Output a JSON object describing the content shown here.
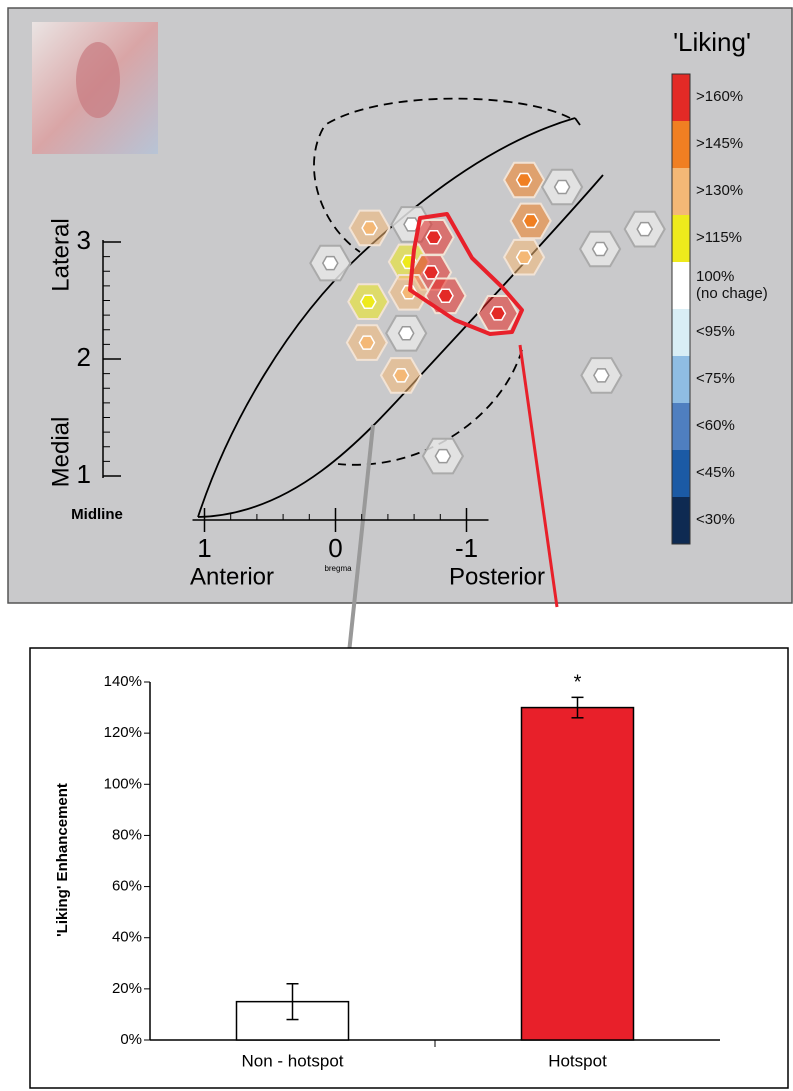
{
  "chart_data": [
    {
      "type": "scatter",
      "title": "'Liking'",
      "x_labels": {
        "anterior": "Anterior",
        "bregma": "bregma",
        "posterior": "Posterior"
      },
      "y_labels": {
        "lateral": "Lateral",
        "medial": "Medial",
        "midline": "Midline"
      },
      "x": [
        0.04,
        -0.26,
        -0.58,
        -0.75,
        -0.56,
        -0.73,
        -0.56,
        -0.84,
        -0.25,
        -0.24,
        -0.54,
        -0.5,
        -1.24,
        -1.44,
        -1.73,
        -1.49,
        -1.44,
        -2.02,
        -2.36,
        -2.03,
        -0.82
      ],
      "values": [
        2.82,
        3.12,
        3.15,
        3.04,
        2.83,
        2.74,
        2.57,
        2.54,
        2.49,
        2.14,
        2.22,
        1.86,
        2.39,
        3.53,
        3.47,
        3.18,
        2.87,
        2.94,
        3.11,
        1.86,
        1.17
      ],
      "colors": [
        "#ffffff",
        "#f4b876",
        "#ffffff",
        "#e32a26",
        "#eeea1c",
        "#e32a26",
        "#f4b876",
        "#e32a26",
        "#eeea1c",
        "#f4b876",
        "#ffffff",
        "#f4b876",
        "#e32a26",
        "#f07f22",
        "#ffffff",
        "#f07f22",
        "#f4b876",
        "#ffffff",
        "#ffffff",
        "#ffffff",
        "#ffffff"
      ],
      "xlim": [
        2.5,
        -3.5
      ],
      "ylim": [
        0,
        5
      ],
      "xticks": [
        1,
        0,
        -1
      ],
      "yticks": [
        1,
        2,
        3
      ],
      "legend": {
        "labels": [
          ">160%",
          ">145%",
          ">130%",
          ">115%",
          "100%\n(no chage)",
          "<95%",
          "<75%",
          "<60%",
          "<45%",
          "<30%"
        ],
        "colors": [
          "#e32a26",
          "#f07f22",
          "#f4b876",
          "#eeea1c",
          "#ffffff",
          "#d9eef5",
          "#8fbde3",
          "#4f7fc0",
          "#1b5aa5",
          "#0e2a52"
        ]
      }
    },
    {
      "type": "bar",
      "ylabel": "'Liking' Enhancement",
      "categories": [
        "Non - hotspot",
        "Hotspot"
      ],
      "values": [
        15,
        130
      ],
      "errors": [
        7,
        4
      ],
      "colors": [
        "#ffffff",
        "#e8202a"
      ],
      "annotation": "*",
      "ylim": [
        0,
        140
      ],
      "yticks": [
        {
          "value": 0,
          "label": "0%"
        },
        {
          "value": 20,
          "label": "20%"
        },
        {
          "value": 40,
          "label": "40%"
        },
        {
          "value": 60,
          "label": "60%"
        },
        {
          "value": 80,
          "label": "80%"
        },
        {
          "value": 100,
          "label": "100%"
        },
        {
          "value": 120,
          "label": "120%"
        },
        {
          "value": 140,
          "label": "140%"
        }
      ]
    }
  ]
}
